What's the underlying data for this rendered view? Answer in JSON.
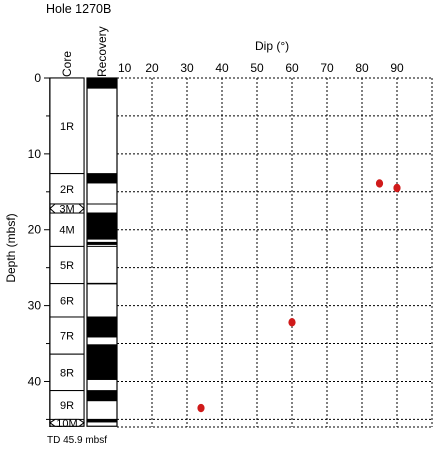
{
  "hole_title": "Hole 1270B",
  "td_note": "TD 45.9 mbsf",
  "columns": {
    "core": "Core",
    "recovery": "Recovery"
  },
  "chart_data": {
    "type": "scatter",
    "title": "Hole 1270B",
    "xlabel": "Dip (°)",
    "ylabel": "Depth (mbsf)",
    "xlim": [
      10,
      100
    ],
    "ylim": [
      0,
      46
    ],
    "y_inverted": true,
    "x_ticks": [
      10,
      20,
      30,
      40,
      50,
      60,
      70,
      80,
      90
    ],
    "y_ticks": [
      0,
      10,
      20,
      30,
      40
    ],
    "grid": true,
    "grid_style": "dashed",
    "point_color": "#d01a1a",
    "points": [
      {
        "x": 85,
        "y": 13.9
      },
      {
        "x": 90,
        "y": 14.5
      },
      {
        "x": 60,
        "y": 32.2
      },
      {
        "x": 34,
        "y": 43.5
      }
    ],
    "cores": [
      {
        "label": "1R",
        "top": 0,
        "bottom": 12.6
      },
      {
        "label": "2R",
        "top": 12.6,
        "bottom": 16.6
      },
      {
        "label": "3M",
        "top": 16.6,
        "bottom": 17.8,
        "shape": "hex"
      },
      {
        "label": "4M",
        "top": 17.8,
        "bottom": 22.2
      },
      {
        "label": "5R",
        "top": 22.2,
        "bottom": 27.1
      },
      {
        "label": "6R",
        "top": 27.1,
        "bottom": 31.5
      },
      {
        "label": "7R",
        "top": 31.5,
        "bottom": 36.4
      },
      {
        "label": "8R",
        "top": 36.4,
        "bottom": 41.2
      },
      {
        "label": "9R",
        "top": 41.2,
        "bottom": 45.0
      },
      {
        "label": "10M",
        "top": 45.0,
        "bottom": 45.9,
        "shape": "hex"
      }
    ],
    "recovery_intervals": [
      [
        0,
        1.4
      ],
      [
        12.6,
        13.9
      ],
      [
        17.8,
        21.3
      ],
      [
        21.6,
        22.0
      ],
      [
        27.0,
        27.2
      ],
      [
        31.5,
        34.2
      ],
      [
        35.1,
        36.4
      ],
      [
        36.4,
        39.8
      ],
      [
        41.2,
        42.6
      ],
      [
        45.0,
        45.4
      ]
    ]
  }
}
